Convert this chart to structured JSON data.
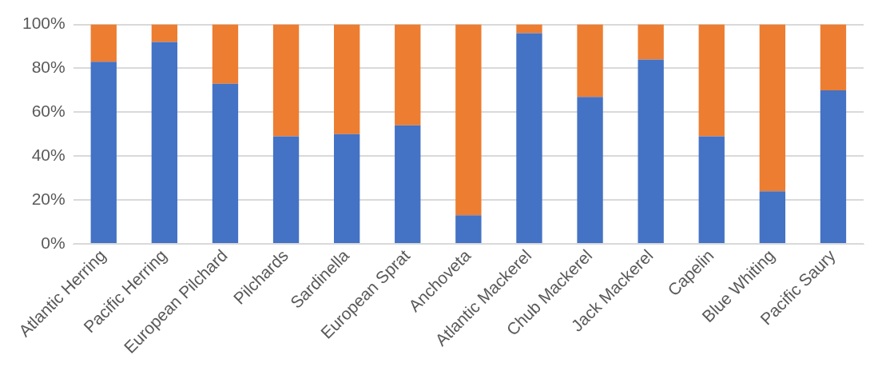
{
  "chart_data": {
    "type": "bar",
    "stacked": true,
    "categories": [
      "Atlantic Herring",
      "Pacific Herring",
      "European Pilchard",
      "Pilchards",
      "Sardinella",
      "European Sprat",
      "Anchoveta",
      "Atlantic Mackerel",
      "Chub Mackerel",
      "Jack Mackerel",
      "Capelin",
      "Blue Whiting",
      "Pacific Saury"
    ],
    "series": [
      {
        "color": "#4472c4",
        "values": [
          83,
          92,
          73,
          49,
          50,
          54,
          13,
          96,
          67,
          84,
          49,
          24,
          70
        ]
      },
      {
        "color": "#ed7d31",
        "values": [
          17,
          8,
          27,
          51,
          50,
          46,
          87,
          4,
          33,
          16,
          51,
          76,
          30
        ]
      }
    ],
    "ylim": [
      0,
      100
    ],
    "yticks": [
      {
        "value": 0,
        "label": "0%"
      },
      {
        "value": 20,
        "label": "20%"
      },
      {
        "value": 40,
        "label": "40%"
      },
      {
        "value": 60,
        "label": "60%"
      },
      {
        "value": 80,
        "label": "80%"
      },
      {
        "value": 100,
        "label": "100%"
      }
    ],
    "grid": "y",
    "legend": false
  }
}
